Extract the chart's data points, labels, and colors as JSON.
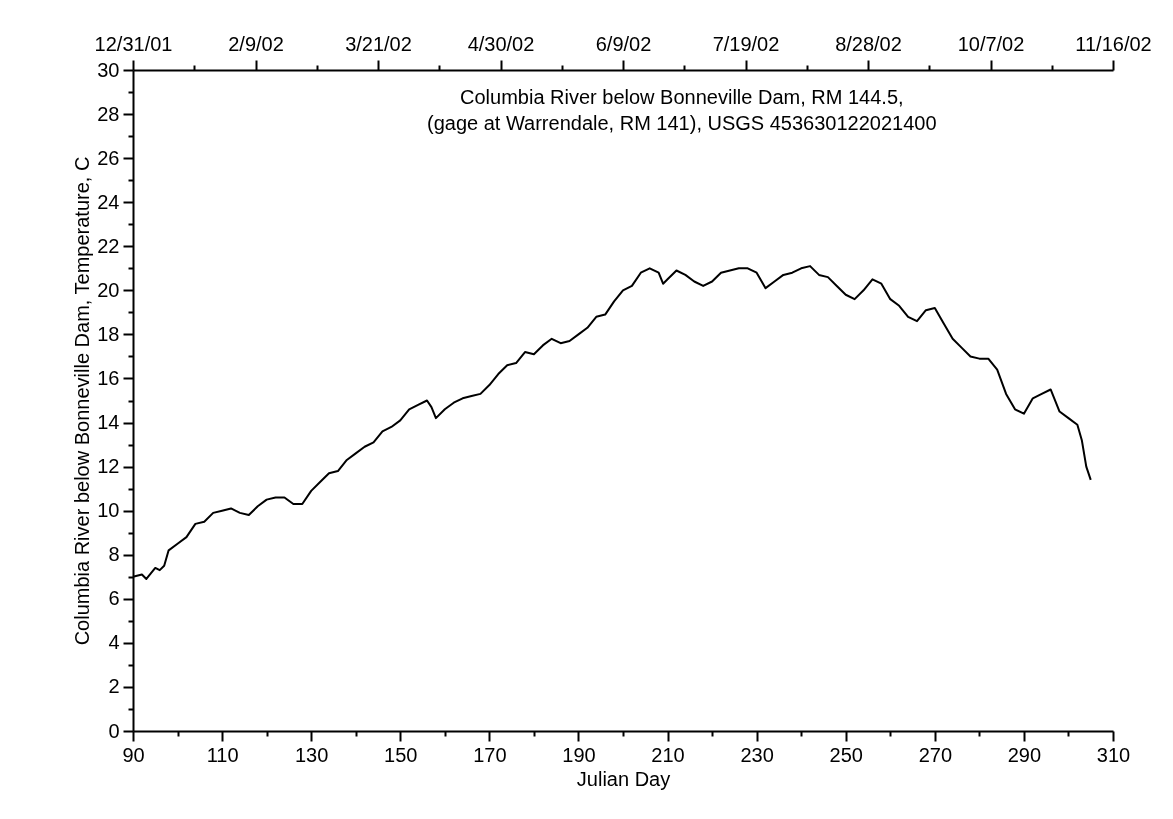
{
  "chart_data": {
    "type": "line",
    "xlabel": "Julian Day",
    "ylabel": "Columbia River  below Bonneville Dam, Temperature, C",
    "annotations": [
      "Columbia River below Bonneville Dam, RM 144.5,\n(gage at Warrendale, RM 141), USGS 453630122021400"
    ],
    "x": [
      90,
      92,
      93,
      95,
      96,
      97,
      98,
      100,
      102,
      104,
      106,
      108,
      110,
      112,
      114,
      116,
      118,
      120,
      122,
      124,
      126,
      128,
      130,
      132,
      134,
      136,
      138,
      140,
      142,
      144,
      146,
      148,
      150,
      152,
      154,
      156,
      157,
      158,
      160,
      162,
      164,
      166,
      168,
      170,
      172,
      174,
      176,
      178,
      180,
      182,
      184,
      186,
      188,
      190,
      192,
      194,
      196,
      198,
      200,
      202,
      204,
      206,
      208,
      209,
      210,
      212,
      214,
      216,
      218,
      220,
      222,
      224,
      226,
      228,
      230,
      232,
      234,
      236,
      238,
      240,
      242,
      244,
      246,
      248,
      250,
      252,
      254,
      256,
      258,
      260,
      262,
      264,
      266,
      268,
      270,
      272,
      274,
      276,
      278,
      280,
      282,
      284,
      286,
      288,
      290,
      292,
      294,
      296,
      298,
      300,
      302,
      303,
      304,
      305
    ],
    "series": [
      {
        "color": "#000000",
        "values": [
          7.0,
          7.1,
          6.9,
          7.4,
          7.3,
          7.5,
          8.2,
          8.5,
          8.8,
          9.4,
          9.5,
          9.9,
          10.0,
          10.1,
          9.9,
          9.8,
          10.2,
          10.5,
          10.6,
          10.6,
          10.3,
          10.3,
          10.9,
          11.3,
          11.7,
          11.8,
          12.3,
          12.6,
          12.9,
          13.1,
          13.6,
          13.8,
          14.1,
          14.6,
          14.8,
          15.0,
          14.7,
          14.2,
          14.6,
          14.9,
          15.1,
          15.2,
          15.3,
          15.7,
          16.2,
          16.6,
          16.7,
          17.2,
          17.1,
          17.5,
          17.8,
          17.6,
          17.7,
          18.0,
          18.3,
          18.8,
          18.9,
          19.5,
          20.0,
          20.2,
          20.8,
          21.0,
          20.8,
          20.3,
          20.5,
          20.9,
          20.7,
          20.4,
          20.2,
          20.4,
          20.8,
          20.9,
          21.0,
          21.0,
          20.8,
          20.1,
          20.4,
          20.7,
          20.8,
          21.0,
          21.1,
          20.7,
          20.6,
          20.2,
          19.8,
          19.6,
          20.0,
          20.5,
          20.3,
          19.6,
          19.3,
          18.8,
          18.6,
          19.1,
          19.2,
          18.5,
          17.8,
          17.4,
          17.0,
          16.9,
          16.9,
          16.4,
          15.3,
          14.6,
          14.4,
          15.1,
          15.3,
          15.5,
          14.5,
          14.2,
          13.9,
          13.2,
          12.0,
          11.4
        ]
      }
    ],
    "xlim": [
      90,
      310
    ],
    "xticks": [
      90,
      {
        "value": 100,
        "label": null
      },
      110,
      {
        "value": 120,
        "label": null
      },
      130,
      {
        "value": 140,
        "label": null
      },
      150,
      {
        "value": 160,
        "label": null
      },
      170,
      {
        "value": 180,
        "label": null
      },
      190,
      {
        "value": 200,
        "label": null
      },
      210,
      {
        "value": 220,
        "label": null
      },
      230,
      {
        "value": 240,
        "label": null
      },
      250,
      {
        "value": 260,
        "label": null
      },
      270,
      {
        "value": 280,
        "label": null
      },
      290,
      {
        "value": 300,
        "label": null
      },
      310
    ],
    "ylim": [
      0,
      30
    ],
    "yticks": [
      0,
      {
        "value": 1,
        "label": null
      },
      2,
      {
        "value": 3,
        "label": null
      },
      4,
      {
        "value": 5,
        "label": null
      },
      6,
      {
        "value": 7,
        "label": null
      },
      8,
      {
        "value": 9,
        "label": null
      },
      10,
      {
        "value": 11,
        "label": null
      },
      12,
      {
        "value": 13,
        "label": null
      },
      14,
      {
        "value": 15,
        "label": null
      },
      16,
      {
        "value": 17,
        "label": null
      },
      18,
      {
        "value": 19,
        "label": null
      },
      20,
      {
        "value": 21,
        "label": null
      },
      22,
      {
        "value": 23,
        "label": null
      },
      24,
      {
        "value": 25,
        "label": null
      },
      26,
      {
        "value": 27,
        "label": null
      },
      28,
      {
        "value": 29,
        "label": null
      },
      30
    ],
    "x2lim": [
      "2001-12-31",
      "2002-11-16"
    ],
    "x2ticks": [
      {
        "value": "2001-12-31",
        "label": "12/31/01"
      },
      {
        "value": "2002-01-20",
        "label": null
      },
      {
        "value": "2002-02-09",
        "label": "2/9/02"
      },
      {
        "value": "2002-03-01",
        "label": null
      },
      {
        "value": "2002-03-21",
        "label": "3/21/02"
      },
      {
        "value": "2002-04-10",
        "label": null
      },
      {
        "value": "2002-04-30",
        "label": "4/30/02"
      },
      {
        "value": "2002-05-20",
        "label": null
      },
      {
        "value": "2002-06-09",
        "label": "6/9/02"
      },
      {
        "value": "2002-06-29",
        "label": null
      },
      {
        "value": "2002-07-19",
        "label": "7/19/02"
      },
      {
        "value": "2002-08-08",
        "label": null
      },
      {
        "value": "2002-08-28",
        "label": "8/28/02"
      },
      {
        "value": "2002-09-17",
        "label": null
      },
      {
        "value": "2002-10-07",
        "label": "10/7/02"
      },
      {
        "value": "2002-10-27",
        "label": null
      },
      {
        "value": "2002-11-16",
        "label": "11/16/02"
      }
    ],
    "grid": false,
    "marker": "none",
    "line_style": "solid"
  }
}
